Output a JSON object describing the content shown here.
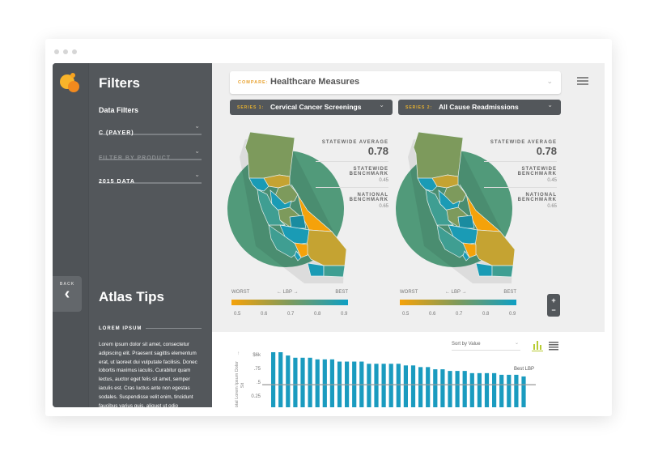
{
  "sidebar": {
    "title": "Filters",
    "section": "Data Filters",
    "filters": [
      {
        "label": "C (PAYER)"
      },
      {
        "label": "FILTER BY PRODUCT",
        "placeholder": true
      },
      {
        "label": "2015 DATA"
      }
    ],
    "back_label": "BACK",
    "tips_title": "Atlas Tips",
    "tips_heading": "LOREM IPSUM",
    "tips_lines": [
      "Lorem ipsum dolor sit amet, consectetur",
      "adipiscing elit. Praesent sagittis elementum",
      "erat, ut laoreet dui vulputate facilisis. Donec",
      "lobortis maximus iaculis. Curabitur quam",
      "lectus, auctor eget felis sit amet, semper",
      "iaculis est. Cras luctus ante non egestas",
      "sodales. Suspendisse velit enim, tincidunt",
      "faucibus varius quis, aliquet ut odio"
    ]
  },
  "compare": {
    "label": "COMPARE:",
    "value": "Healthcare Measures"
  },
  "series": [
    {
      "label": "SERIES 1:",
      "value": "Cervical Cancer Screenings"
    },
    {
      "label": "SERIES 2:",
      "value": "All Cause Readmissions"
    }
  ],
  "panels": [
    {
      "avg_label": "STATEWIDE AVERAGE",
      "avg": "0.78",
      "sb_label1": "STATEWIDE",
      "sb_label2": "BENCHMARK",
      "sb": "0.45",
      "nb_label1": "NATIONAL",
      "nb_label2": "BENCHMARK",
      "nb": "0.65"
    },
    {
      "avg_label": "STATEWIDE AVERAGE",
      "avg": "0.78",
      "sb_label1": "STATEWIDE",
      "sb_label2": "BENCHMARK",
      "sb": "0.45",
      "nb_label1": "NATIONAL",
      "nb_label2": "BENCHMARK",
      "nb": "0.65"
    }
  ],
  "legend": {
    "worst": "WORST",
    "lbp": "LBP",
    "best": "BEST",
    "ticks": [
      "0.5",
      "0.6",
      "0.7",
      "0.8",
      "0.9"
    ],
    "colors": [
      "#f5a20a",
      "#7d9a5c",
      "#0e9fc4"
    ]
  },
  "zoom": {
    "plus": "+",
    "minus": "−"
  },
  "chart": {
    "sort_label": "Sort by Value",
    "best_label": "Best LBP"
  },
  "chart_data": {
    "type": "bar",
    "ylabel": "Total Lorem Ipsum Dolor Sit",
    "yticks": [
      "$6k",
      ".75",
      ".5",
      "0.25"
    ],
    "ylim": [
      0.1,
      1.0
    ],
    "benchmark": 0.41,
    "color": "#1a9bbf",
    "values": [
      1.0,
      1.0,
      0.94,
      0.9,
      0.9,
      0.9,
      0.87,
      0.87,
      0.87,
      0.83,
      0.83,
      0.83,
      0.83,
      0.79,
      0.79,
      0.79,
      0.79,
      0.79,
      0.76,
      0.76,
      0.73,
      0.73,
      0.69,
      0.69,
      0.66,
      0.66,
      0.66,
      0.62,
      0.62,
      0.62,
      0.62,
      0.59,
      0.59,
      0.59,
      0.56
    ]
  },
  "colors": {
    "circle": "#519a7a",
    "olive": "#7d9a5c",
    "teal": "#3f9e92",
    "blue": "#1a9bb5",
    "gold": "#c5a332",
    "orange": "#f5a20a",
    "darkteal": "#1a8ca0"
  }
}
